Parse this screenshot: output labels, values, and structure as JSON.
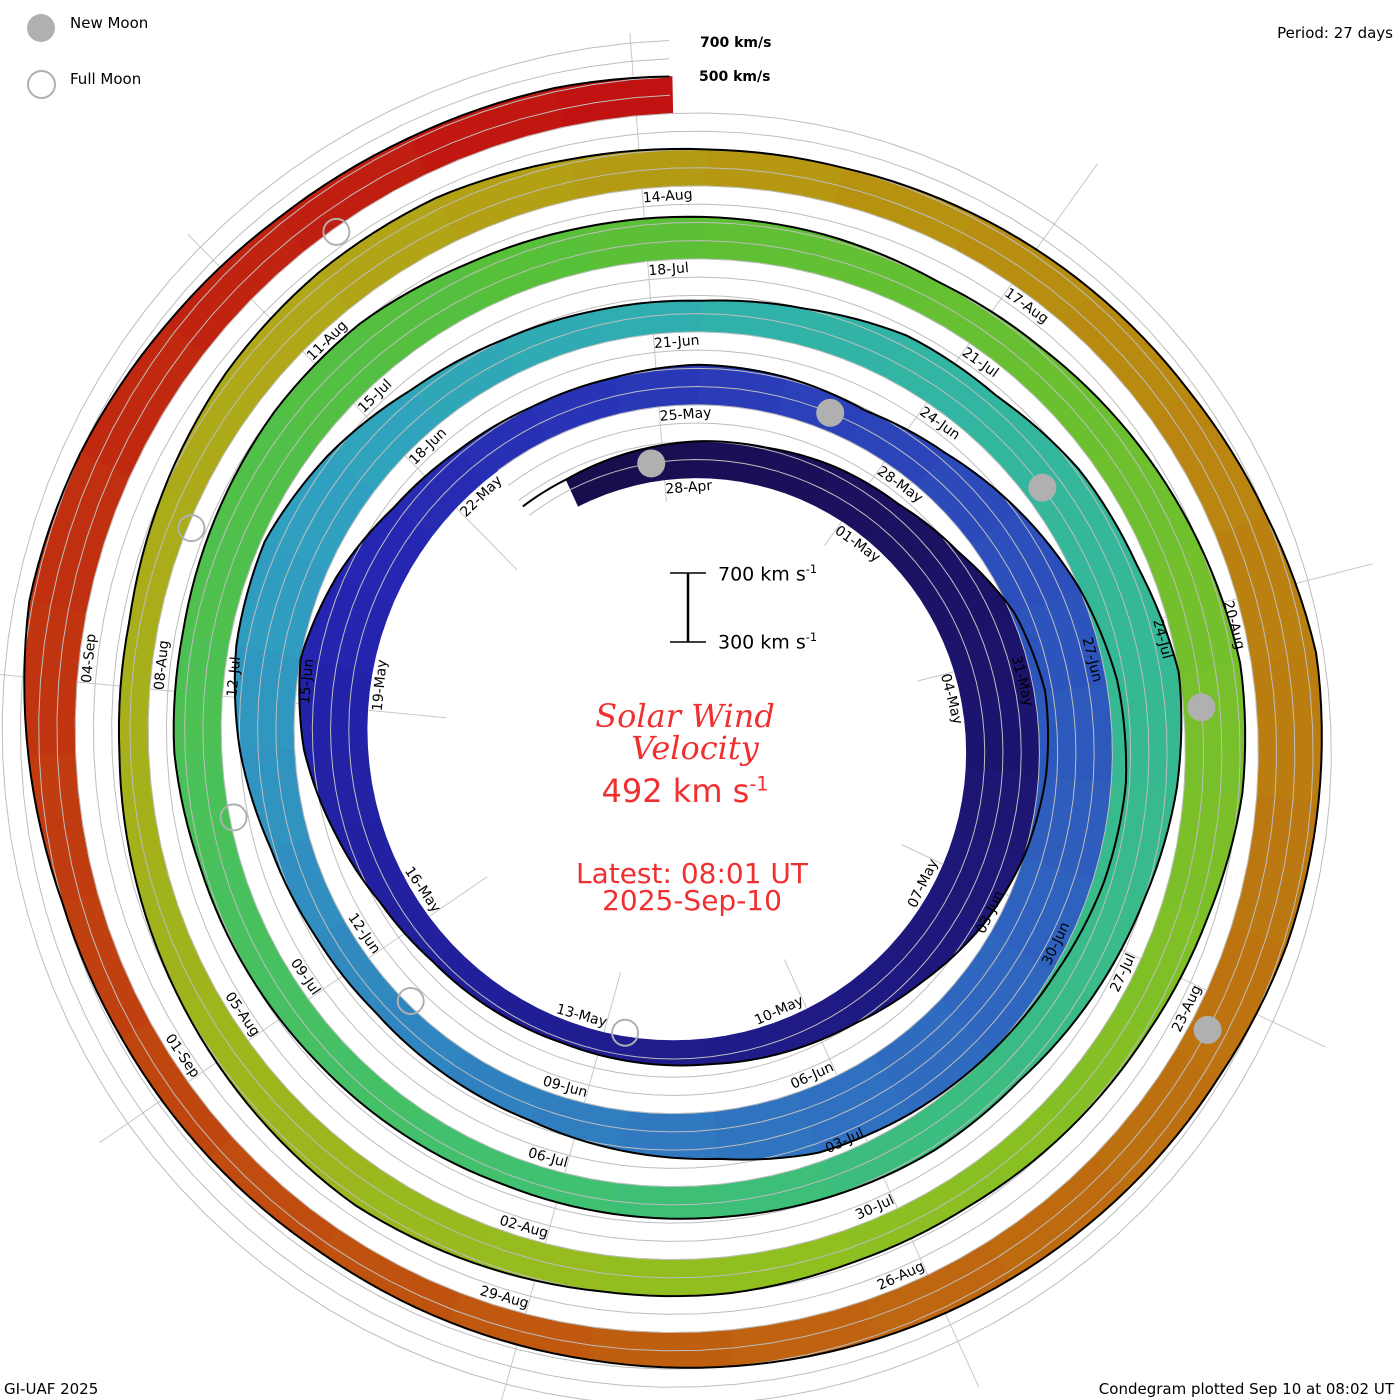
{
  "legend": {
    "new_moon": "New Moon",
    "full_moon": "Full Moon"
  },
  "period": "Period: 27 days",
  "credit": "GI-UAF 2025",
  "plotted": "Condegram plotted Sep 10 at 08:02 UT",
  "chart_data": {
    "type": "condegram",
    "title": "Solar Wind",
    "title2": "Velocity",
    "current_value": "492 km s",
    "unit_exp": "-1",
    "latest": "Latest: 08:01 UT",
    "latest_date": "2025-Sep-10",
    "period_days": 27,
    "scale": {
      "top": "700 km s",
      "bottom": "300 km s",
      "exp": "-1"
    },
    "grid_labels": {
      "high": "700 km/s",
      "mid": "500 km/s"
    },
    "speed_range_kms": [
      300,
      700
    ],
    "gridline_speeds_kms": [
      400,
      500,
      600,
      700
    ],
    "start_day": -2.6,
    "end_day": 135,
    "first_sample_day": -1.834,
    "sample_interval_days": 1,
    "speed_kms": [
      460,
      480,
      500,
      510,
      540,
      560,
      620,
      720,
      760,
      740,
      700,
      640,
      560,
      500,
      470,
      440,
      430,
      420,
      430,
      440,
      480,
      560,
      650,
      700,
      640,
      560,
      520,
      500,
      500,
      520,
      510,
      490,
      540,
      620,
      700,
      760,
      780,
      760,
      720,
      700,
      680,
      650,
      560,
      520,
      480,
      470,
      460,
      480,
      520,
      600,
      660,
      680,
      620,
      540,
      500,
      480,
      470,
      500,
      560,
      560,
      620,
      640,
      700,
      660,
      600,
      560,
      520,
      520,
      500,
      480,
      470,
      460,
      470,
      480,
      500,
      520,
      560,
      560,
      580,
      600,
      600,
      560,
      540,
      530,
      520,
      500,
      520,
      560,
      600,
      640,
      620,
      560,
      520,
      500,
      480,
      480,
      500,
      500,
      520,
      540,
      520,
      500,
      480,
      460,
      460,
      500,
      540,
      560,
      560,
      520,
      500,
      500,
      520,
      540,
      560,
      600,
      660,
      640,
      620,
      580,
      560,
      540,
      520,
      500,
      480,
      470,
      460,
      470,
      480,
      500,
      560,
      620,
      600,
      560,
      530,
      520,
      520,
      500
    ],
    "first_label_day": -0.334,
    "label_interval_days": 3,
    "date_labels": [
      "28-Apr",
      "01-May",
      "04-May",
      "07-May",
      "10-May",
      "13-May",
      "16-May",
      "19-May",
      "22-May",
      "25-May",
      "28-May",
      "31-May",
      "03-Jun",
      "06-Jun",
      "09-Jun",
      "12-Jun",
      "15-Jun",
      "18-Jun",
      "21-Jun",
      "24-Jun",
      "27-Jun",
      "30-Jun",
      "03-Jul",
      "06-Jul",
      "09-Jul",
      "12-Jul",
      "15-Jul",
      "18-Jul",
      "21-Jul",
      "24-Jul",
      "27-Jul",
      "30-Jul",
      "02-Aug",
      "05-Aug",
      "08-Aug",
      "11-Aug",
      "14-Aug",
      "17-Aug",
      "20-Aug",
      "23-Aug",
      "26-Aug",
      "29-Aug",
      "01-Sep",
      "04-Sep"
    ],
    "moons": [
      {
        "type": "new",
        "day": -0.52
      },
      {
        "type": "new",
        "day": 28.79
      },
      {
        "type": "new",
        "day": 58.1
      },
      {
        "type": "new",
        "day": 87.47
      },
      {
        "type": "new",
        "day": 116.92
      },
      {
        "type": "full",
        "day": 14.37
      },
      {
        "type": "full",
        "day": 43.99
      },
      {
        "type": "full",
        "day": 73.53
      },
      {
        "type": "full",
        "day": 103.0
      },
      {
        "type": "full",
        "day": 132.42
      }
    ],
    "color_stops": [
      [
        0,
        "#180c48"
      ],
      [
        0.18,
        "#2424b0"
      ],
      [
        0.22,
        "#2a3cb8"
      ],
      [
        0.3,
        "#3070c0"
      ],
      [
        0.38,
        "#30a0c0"
      ],
      [
        0.42,
        "#30b4a8"
      ],
      [
        0.52,
        "#40c070"
      ],
      [
        0.6,
        "#58c038"
      ],
      [
        0.7,
        "#90c020"
      ],
      [
        0.78,
        "#b0a818"
      ],
      [
        0.82,
        "#b89010"
      ],
      [
        0.9,
        "#c06010"
      ],
      [
        1,
        "#c01010"
      ]
    ],
    "moon_color": "#b0b0b0",
    "text_color": "#f03030"
  }
}
